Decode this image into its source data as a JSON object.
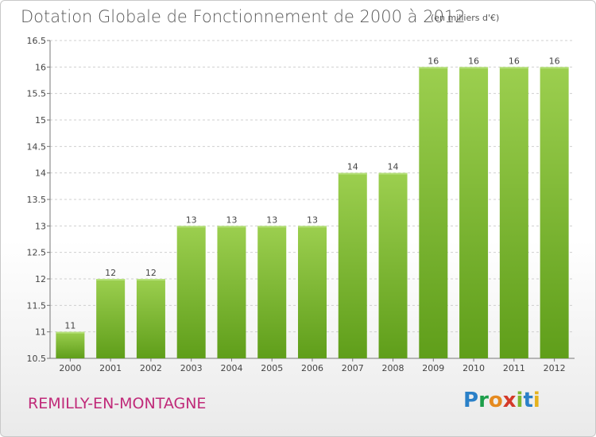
{
  "title": "Dotation Globale de Fonctionnement de 2000 à 2012",
  "subtitle": "(en milliers d'€)",
  "commune": "REMILLY-EN-MONTAGNE",
  "logo": {
    "letters": [
      "P",
      "r",
      "o",
      "x",
      "i",
      "t",
      "i"
    ],
    "colors": [
      "#2a80c8",
      "#1c9e4a",
      "#e58a1f",
      "#d43a2a",
      "#7cb82f",
      "#2a80c8",
      "#e5b21f"
    ]
  },
  "chart_data": {
    "type": "bar",
    "title": "Dotation Globale de Fonctionnement de 2000 à 2012",
    "subtitle": "(en milliers d'€)",
    "categories": [
      "2000",
      "2001",
      "2002",
      "2003",
      "2004",
      "2005",
      "2006",
      "2007",
      "2008",
      "2009",
      "2010",
      "2011",
      "2012"
    ],
    "values": [
      11,
      12,
      12,
      13,
      13,
      13,
      13,
      14,
      14,
      16,
      16,
      16,
      16
    ],
    "data_labels": [
      "11",
      "12",
      "12",
      "13",
      "13",
      "13",
      "13",
      "14",
      "14",
      "16",
      "16",
      "16",
      "16"
    ],
    "y_ticks": [
      "10.5",
      "11",
      "11.5",
      "12",
      "12.5",
      "13",
      "13.5",
      "14",
      "14.5",
      "15",
      "15.5",
      "16",
      "16.5"
    ],
    "ylim": [
      10.5,
      16.5
    ],
    "grid": "horizontal dashed",
    "bar_color_top": "#9ccf4f",
    "bar_color_bottom": "#5f9e1a"
  }
}
